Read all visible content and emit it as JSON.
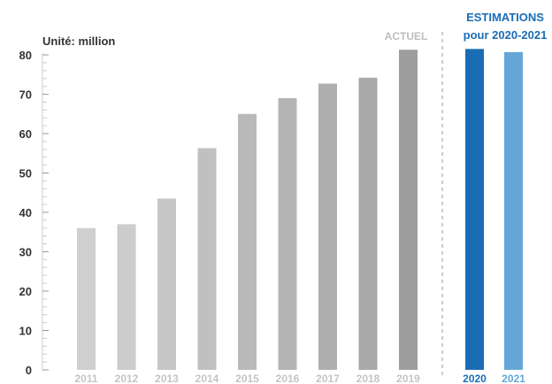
{
  "chart_data": {
    "type": "bar",
    "title": "",
    "unit_label": "Unité: million",
    "xlabel": "",
    "ylabel": "",
    "ylim": [
      0,
      80
    ],
    "yticks": [
      0,
      10,
      20,
      30,
      40,
      50,
      60,
      70,
      80
    ],
    "grid": false,
    "actual": {
      "label": "ACTUEL",
      "categories": [
        "2011",
        "2012",
        "2013",
        "2014",
        "2015",
        "2016",
        "2017",
        "2018",
        "2019"
      ],
      "values": [
        36,
        37,
        43.5,
        56.3,
        65,
        69,
        72.7,
        74.2,
        81.3
      ],
      "colors": [
        "#cfcfcf",
        "#cccccc",
        "#c6c6c6",
        "#c0c0c0",
        "#b9b9b9",
        "#b4b4b4",
        "#aeaeae",
        "#a9a9a9",
        "#9e9e9e"
      ],
      "label_color": "#bdbdbd"
    },
    "estimates": {
      "label_line1": "ESTIMATIONS",
      "label_line2": "pour 2020-2021",
      "categories": [
        "2020",
        "2021"
      ],
      "values": [
        81.5,
        80.7
      ],
      "colors": [
        "#1a6db5",
        "#64a6d8"
      ],
      "label_color": "#1a6db5"
    }
  }
}
